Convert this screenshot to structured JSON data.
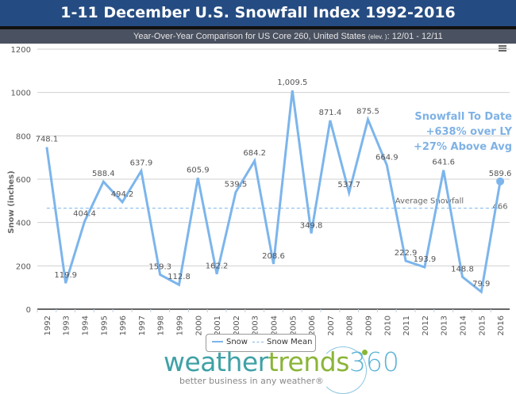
{
  "header": {
    "title": "1-11 December U.S. Snowfall Index 1992-2016",
    "subtitle_main": "Year-Over-Year Comparison for US Core 260, United States ",
    "subtitle_small": "(elev. )",
    "subtitle_tail": ": 12/01 - 12/11"
  },
  "menu": {
    "icon": "hamburger-menu-icon"
  },
  "annotation": {
    "line1": "Snowfall To Date",
    "line2": "+638% over LY",
    "line3": "+27% Above Avg"
  },
  "legend": {
    "items": [
      {
        "label": "Snow",
        "style": "solid",
        "color": "#7cb5ec"
      },
      {
        "label": "Snow Mean",
        "style": "dashed",
        "color": "#7cb5ec"
      }
    ]
  },
  "logo": {
    "part1": "weather",
    "part2": "trends",
    "part3": "360",
    "tagline": "better business in any weather®"
  },
  "colors": {
    "title_bg": "#254c82",
    "subtitle_bg": "#4a5160",
    "series": "#7cb5ec",
    "annotation": "#7fb2e5"
  },
  "chart_data": {
    "type": "line",
    "title": "1-11 December U.S. Snowfall Index 1992-2016",
    "ylabel": "Snow (inches)",
    "xlabel": "",
    "ylim": [
      0,
      1200
    ],
    "yticks": [
      0,
      200,
      400,
      600,
      800,
      1000,
      1200
    ],
    "grid": true,
    "legend_position": "bottom-center",
    "categories": [
      "1992",
      "1993",
      "1994",
      "1995",
      "1996",
      "1997",
      "1998",
      "1999",
      "2000",
      "2001",
      "2002",
      "2003",
      "2004",
      "2005",
      "2006",
      "2007",
      "2008",
      "2009",
      "2010",
      "2011",
      "2012",
      "2013",
      "2014",
      "2015",
      "2016"
    ],
    "series": [
      {
        "name": "Snow",
        "values": [
          748.1,
          119.9,
          404.4,
          588.4,
          494.2,
          637.9,
          159.3,
          112.8,
          605.9,
          162.2,
          539.5,
          684.2,
          208.6,
          1009.5,
          349.8,
          871.4,
          537.7,
          875.5,
          664.9,
          222.9,
          193.9,
          641.6,
          148.8,
          79.9,
          589.6
        ],
        "labels": [
          "748.1",
          "119.9",
          "404.4",
          "588.4",
          "494.2",
          "637.9",
          "159.3",
          "112.8",
          "605.9",
          "162.2",
          "539.5",
          "684.2",
          "208.6",
          "1,009.5",
          "349.8",
          "871.4",
          "537.7",
          "875.5",
          "664.9",
          "222.9",
          "193.9",
          "641.6",
          "148.8",
          "79.9",
          "589.6"
        ]
      },
      {
        "name": "Snow Mean",
        "value": 466,
        "label": "466",
        "annotation": "Average Snowfall"
      }
    ]
  }
}
